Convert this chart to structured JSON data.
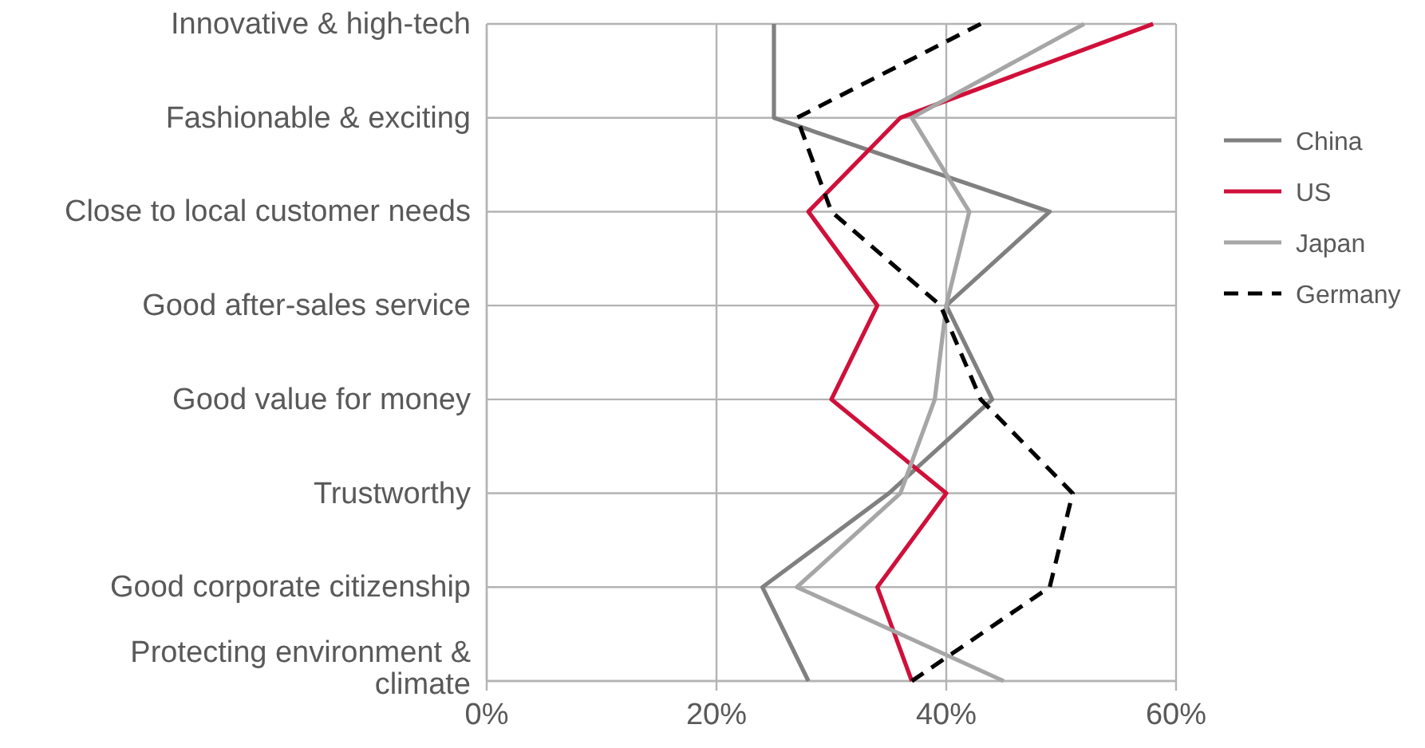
{
  "chart_data": {
    "type": "line",
    "orientation": "horizontal",
    "categories": [
      "Innovative & high-tech",
      "Fashionable & exciting",
      "Close to local customer needs",
      "Good after-sales service",
      "Good value for money",
      "Trustworthy",
      "Good corporate citizenship",
      "Protecting environment & climate"
    ],
    "series": [
      {
        "name": "China",
        "color": "#808080",
        "values": [
          25,
          25,
          49,
          40,
          44,
          35,
          24,
          28
        ]
      },
      {
        "name": "US",
        "color": "#d0103a",
        "values": [
          58,
          36,
          28,
          34,
          30,
          40,
          34,
          37
        ]
      },
      {
        "name": "Japan",
        "color": "#a6a6a6",
        "values": [
          52,
          37,
          42,
          40,
          39,
          36,
          27,
          45
        ]
      },
      {
        "name": "Germany",
        "color": "#000000",
        "line_style": "dashed",
        "values": [
          43,
          27,
          30,
          39.5,
          43,
          51,
          49,
          37
        ]
      }
    ],
    "xlim": [
      0,
      60
    ],
    "xticks": [
      {
        "value": 0,
        "label": "0%"
      },
      {
        "value": 20,
        "label": "20%"
      },
      {
        "value": 40,
        "label": "40%"
      },
      {
        "value": 60,
        "label": "60%"
      }
    ],
    "grid": true,
    "legend": "right"
  }
}
